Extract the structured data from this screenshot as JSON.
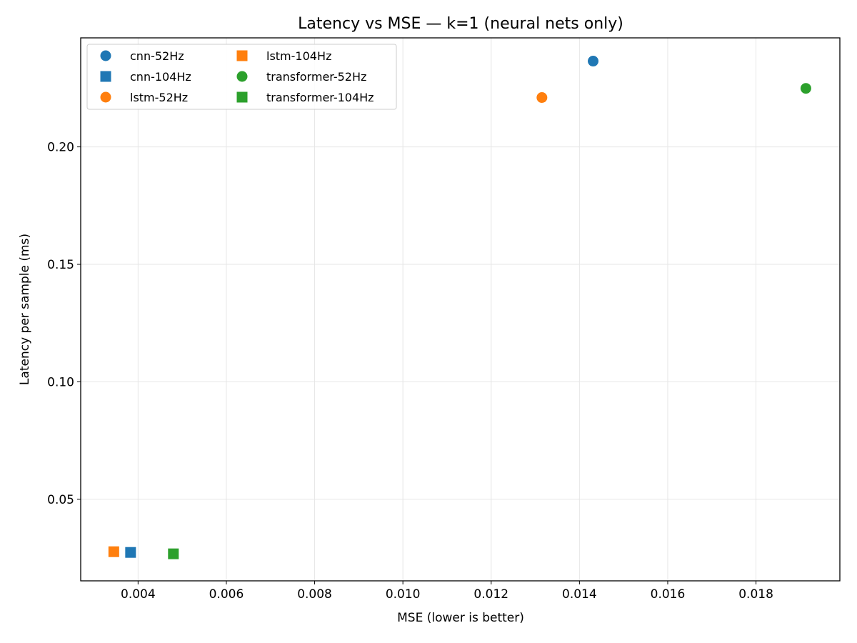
{
  "chart_data": {
    "type": "scatter",
    "title": "Latency vs MSE — k=1  (neural nets only)",
    "xlabel": "MSE (lower is better)",
    "ylabel": "Latency per sample (ms)",
    "xlim": [
      0.0027,
      0.0199
    ],
    "ylim": [
      0.0153,
      0.2464
    ],
    "xticks": [
      0.004,
      0.006,
      0.008,
      0.01,
      0.012,
      0.014,
      0.016,
      0.018
    ],
    "xtick_labels": [
      "0.004",
      "0.006",
      "0.008",
      "0.010",
      "0.012",
      "0.014",
      "0.016",
      "0.018"
    ],
    "yticks": [
      0.05,
      0.1,
      0.15,
      0.2
    ],
    "ytick_labels": [
      "0.05",
      "0.10",
      "0.15",
      "0.20"
    ],
    "grid": true,
    "legend_placement": "top-left",
    "legend_columns": 2,
    "series": [
      {
        "name": "cnn-52Hz",
        "color": "#1f77b4",
        "marker": "circle",
        "points": [
          {
            "x": 0.01431,
            "y": 0.2365
          }
        ]
      },
      {
        "name": "cnn-104Hz",
        "color": "#1f77b4",
        "marker": "square",
        "points": [
          {
            "x": 0.00383,
            "y": 0.0274
          }
        ]
      },
      {
        "name": "lstm-52Hz",
        "color": "#ff7f0e",
        "marker": "circle",
        "points": [
          {
            "x": 0.01315,
            "y": 0.221
          }
        ]
      },
      {
        "name": "lstm-104Hz",
        "color": "#ff7f0e",
        "marker": "square",
        "points": [
          {
            "x": 0.00345,
            "y": 0.0277
          }
        ]
      },
      {
        "name": "transformer-52Hz",
        "color": "#2ca02c",
        "marker": "circle",
        "points": [
          {
            "x": 0.01913,
            "y": 0.2249
          }
        ]
      },
      {
        "name": "transformer-104Hz",
        "color": "#2ca02c",
        "marker": "square",
        "points": [
          {
            "x": 0.0048,
            "y": 0.0268
          }
        ]
      }
    ]
  }
}
